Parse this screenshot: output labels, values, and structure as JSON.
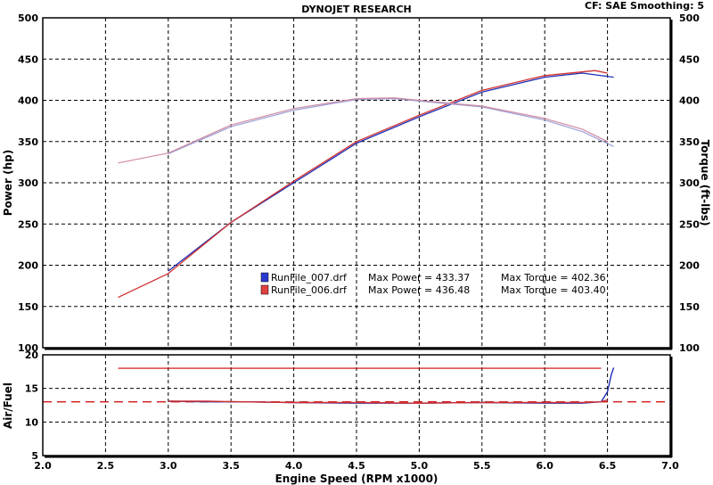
{
  "header": {
    "title": "DYNOJET RESEARCH",
    "settings": "CF: SAE  Smoothing: 5"
  },
  "colors": {
    "run007": "#1f2fb5",
    "run006": "#d03030",
    "torque007": "#9aa0d8",
    "torque006": "#d08aa0",
    "grid": "#000000",
    "afr_ref": "#cc0000"
  },
  "legend": {
    "rows": [
      {
        "file": "RunFile_007.drf",
        "power": "Max Power = 433.37",
        "torque": "Max Torque = 402.36"
      },
      {
        "file": "RunFile_006.drf",
        "power": "Max Power = 436.48",
        "torque": "Max Torque = 403.40"
      }
    ]
  },
  "chart_data": [
    {
      "type": "line",
      "title": "DYNOJET RESEARCH",
      "xlabel": "",
      "ylabel": "Power (hp)",
      "y2label": "Torque (ft-lbs)",
      "xlim": [
        2.0,
        7.0
      ],
      "ylim": [
        100,
        500
      ],
      "y2lim": [
        100,
        500
      ],
      "x_ticks": [
        "2.0",
        "2.5",
        "3.0",
        "3.5",
        "4.0",
        "4.5",
        "5.0",
        "5.5",
        "6.0",
        "6.5",
        "7.0"
      ],
      "y_ticks": [
        "100",
        "150",
        "200",
        "250",
        "300",
        "350",
        "400",
        "450",
        "500"
      ],
      "grid": true,
      "series": [
        {
          "name": "RunFile_007.drf",
          "measure": "power",
          "color": "#1f2fb5",
          "x": [
            3.0,
            3.5,
            4.0,
            4.5,
            5.0,
            5.5,
            6.0,
            6.3,
            6.55
          ],
          "y": [
            193,
            252,
            300,
            348,
            380,
            410,
            428,
            433,
            428
          ]
        },
        {
          "name": "RunFile_006.drf",
          "measure": "power",
          "color": "#d03030",
          "x": [
            2.6,
            3.0,
            3.5,
            4.0,
            4.5,
            5.0,
            5.5,
            6.0,
            6.4,
            6.5
          ],
          "y": [
            161,
            190,
            252,
            302,
            350,
            382,
            412,
            430,
            436,
            433
          ]
        },
        {
          "name": "RunFile_007.drf",
          "measure": "torque",
          "color": "#9aa0d8",
          "x": [
            3.0,
            3.5,
            4.0,
            4.5,
            4.8,
            5.0,
            5.5,
            6.0,
            6.3,
            6.55
          ],
          "y": [
            335,
            368,
            388,
            401,
            402,
            399,
            392,
            376,
            362,
            344
          ]
        },
        {
          "name": "RunFile_006.drf",
          "measure": "torque",
          "color": "#d08aa0",
          "x": [
            2.6,
            3.0,
            3.5,
            4.0,
            4.5,
            4.8,
            5.0,
            5.5,
            6.0,
            6.3,
            6.5
          ],
          "y": [
            324,
            336,
            370,
            390,
            402,
            403,
            400,
            393,
            378,
            365,
            350
          ]
        }
      ]
    },
    {
      "type": "line",
      "xlabel": "Engine Speed (RPM x1000)",
      "ylabel": "Air/Fuel",
      "xlim": [
        2.0,
        7.0
      ],
      "ylim": [
        5,
        20
      ],
      "x_ticks": [
        "2.0",
        "2.5",
        "3.0",
        "3.5",
        "4.0",
        "4.5",
        "5.0",
        "5.5",
        "6.0",
        "6.5",
        "7.0"
      ],
      "y_ticks": [
        "5",
        "10",
        "15",
        "20"
      ],
      "grid": true,
      "reference_lines": [
        {
          "style": "solid",
          "color": "#cc0000",
          "y": 18.0,
          "x": [
            2.6,
            6.45
          ]
        },
        {
          "style": "dashed",
          "color": "#cc0000",
          "y": 13.0,
          "x": [
            2.0,
            7.0
          ]
        }
      ],
      "series": [
        {
          "name": "RunFile_007.drf",
          "color": "#1f2fb5",
          "x": [
            3.0,
            3.3,
            3.6,
            4.0,
            4.5,
            5.0,
            5.5,
            6.0,
            6.3,
            6.45,
            6.5,
            6.53,
            6.55
          ],
          "y": [
            13.1,
            13.0,
            13.0,
            12.9,
            12.8,
            12.8,
            12.9,
            12.8,
            12.8,
            13.0,
            14.5,
            17.0,
            18.1
          ]
        },
        {
          "name": "RunFile_006.drf",
          "color": "#d03030",
          "x": [
            3.0,
            3.3,
            3.6,
            4.0,
            4.5,
            5.0,
            5.5,
            6.0,
            6.3,
            6.45,
            6.5
          ],
          "y": [
            13.1,
            13.1,
            13.0,
            12.9,
            12.9,
            12.8,
            12.9,
            12.9,
            12.9,
            13.0,
            13.3
          ]
        }
      ]
    }
  ]
}
